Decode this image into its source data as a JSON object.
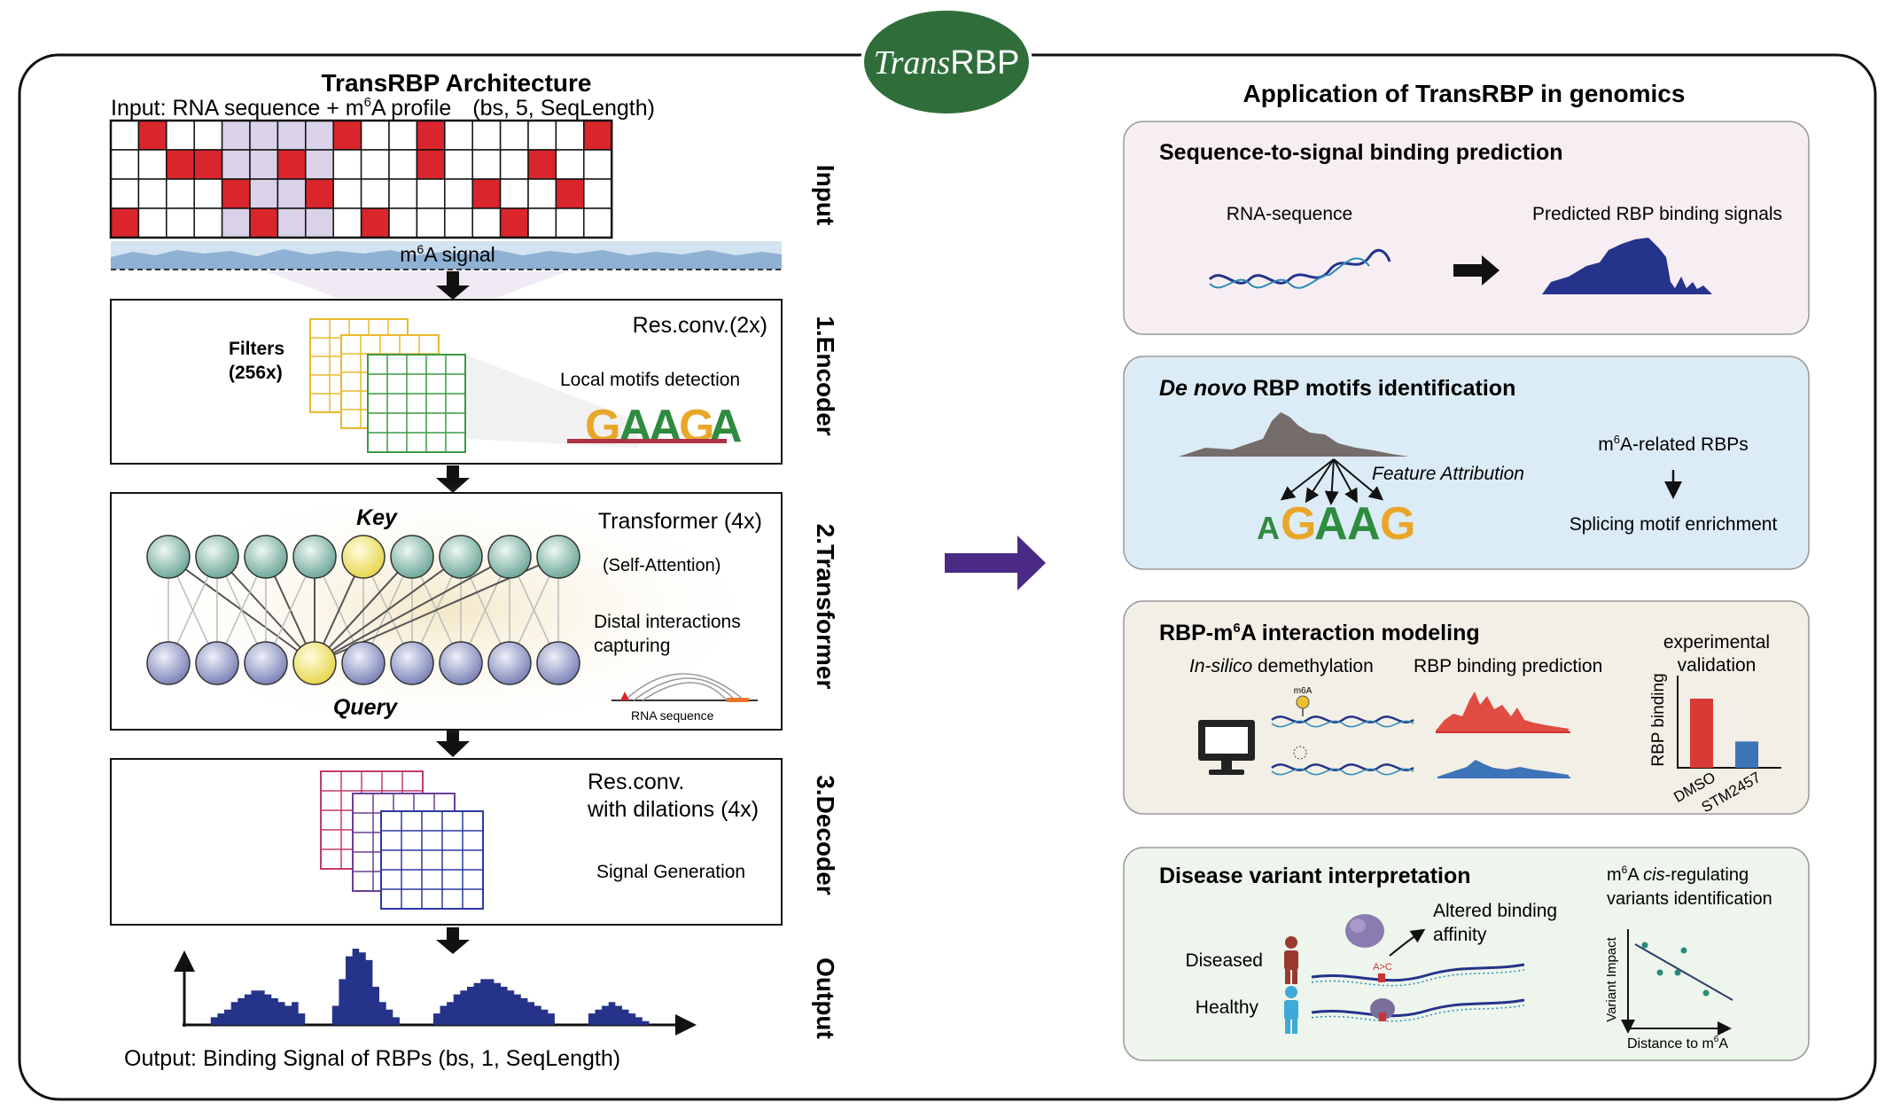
{
  "logo": {
    "text_trans": "Trans",
    "text_rbp": "RBP"
  },
  "left": {
    "title": "TransRBP Architecture",
    "input_line": {
      "pre": "Input: RNA sequence + m",
      "sup": "6",
      "post": "A profile",
      "shape": "(bs, 5, SeqLength)"
    },
    "m6a_signal": {
      "pre": "m",
      "sup": "6",
      "post": "A signal"
    },
    "stages": {
      "input": "Input",
      "encoder": "1.Encoder",
      "transformer": "2.Transformer",
      "decoder": "3.Decoder",
      "output": "Output"
    },
    "encoder": {
      "heading": "Res.conv.(2x)",
      "filters_line1": "Filters",
      "filters_line2": "(256x)",
      "motif_label": "Local motifs detection",
      "motif": [
        "G",
        "A",
        "A",
        "G",
        "A"
      ]
    },
    "transformer": {
      "heading": "Transformer (4x)",
      "self_attention": "(Self-Attention)",
      "key": "Key",
      "query": "Query",
      "distal_line1": "Distal interactions",
      "distal_line2": "capturing",
      "rna_seq": "RNA sequence"
    },
    "decoder": {
      "heading_line1": "Res.conv.",
      "heading_line2": "with dilations (4x)",
      "signal_generation": "Signal Generation"
    },
    "output_label": "Output: Binding Signal of RBPs (bs, 1, SeqLength)"
  },
  "right": {
    "title": "Application of TransRBP in genomics",
    "panel1": {
      "title": "Sequence-to-signal binding prediction",
      "rna_sequence": "RNA-sequence",
      "predicted": "Predicted RBP binding signals"
    },
    "panel2": {
      "title_italic": "De novo",
      "title_rest": " RBP motifs identification",
      "feature_attribution": "Feature Attribution",
      "motif": [
        "A",
        "G",
        "A",
        "A",
        "G"
      ],
      "m6a_rbps": {
        "pre": "m",
        "sup": "6",
        "post": "A-related RBPs"
      },
      "splicing": "Splicing motif enrichment"
    },
    "panel3": {
      "title_pre": "RBP-m",
      "title_sup": "6",
      "title_post": "A interaction modeling",
      "in_silico_italic": "In-silico",
      "in_silico_rest": " demethylation",
      "rbp_binding_prediction": "RBP binding prediction",
      "m6a_small": "m6A",
      "experimental_line1": "experimental",
      "experimental_line2": "validation",
      "ylabel": "RBP binding",
      "chart_data": {
        "type": "bar",
        "categories": [
          "DMSO",
          "STM2457"
        ],
        "values": [
          1.0,
          0.38
        ],
        "ylabel": "RBP binding",
        "colors": [
          "#d93a36",
          "#3c74b8"
        ]
      }
    },
    "panel4": {
      "title": "Disease variant interpretation",
      "altered_line1": "Altered binding",
      "altered_line2": "affinity",
      "diseased": "Diseased",
      "healthy": "Healthy",
      "mutation": "A>C",
      "cis_line1_pre": "m",
      "cis_line1_sup": "6",
      "cis_line1_mid": "A ",
      "cis_line1_italic": "cis",
      "cis_line1_post": "-regulating",
      "cis_line2": "variants identification",
      "ylabel": "Variant Impact",
      "xlabel_pre": "Distance to m",
      "xlabel_sup": "6",
      "xlabel_post": "A"
    }
  },
  "colors": {
    "red_cell": "#d9252b",
    "purple_arrow": "#4a2a84",
    "logo_green": "#2f6e3a",
    "navy": "#25338a",
    "panel1": "#f6eef3",
    "panel2": "#dcecf6",
    "panel3": "#f2efe6",
    "panel4": "#edf5ec"
  }
}
